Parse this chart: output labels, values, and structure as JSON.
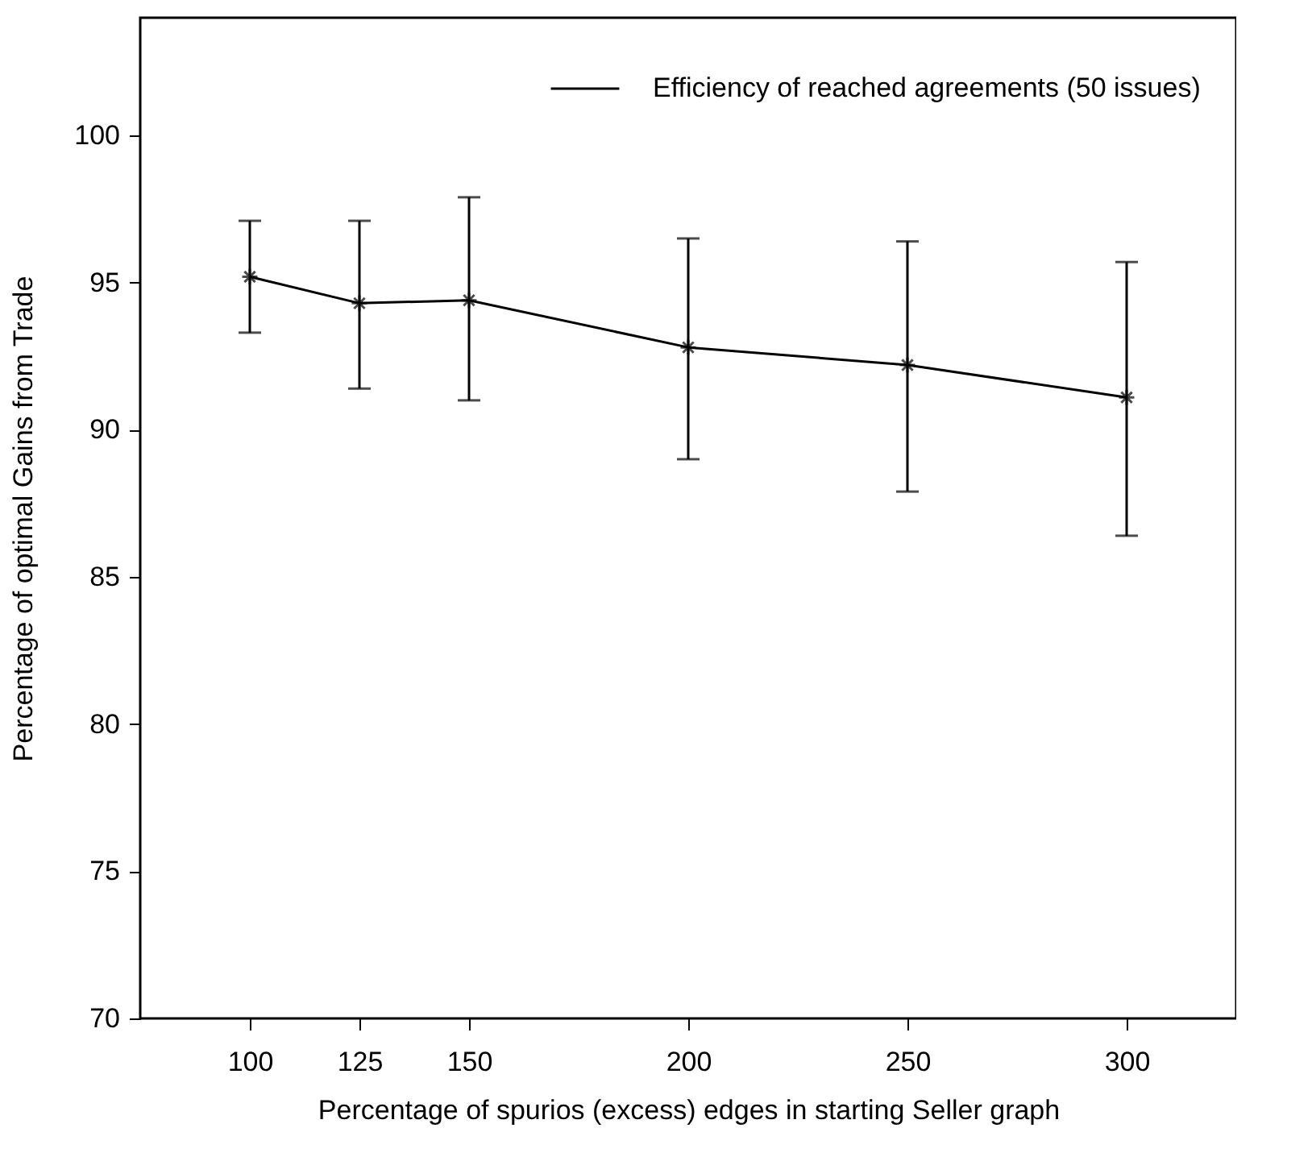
{
  "chart_data": {
    "type": "line",
    "xlabel": "Percentage of spurios (excess) edges in starting Seller graph",
    "ylabel": "Percentage of optimal Gains from Trade",
    "x": [
      100,
      125,
      150,
      200,
      250,
      300
    ],
    "series": [
      {
        "name": "Efficiency of reached agreements (50 issues)",
        "color": "#000000",
        "values": [
          95.2,
          94.3,
          94.4,
          92.8,
          92.2,
          91.1
        ],
        "errors": [
          [
            93.3,
            97.1
          ],
          [
            91.4,
            97.1
          ],
          [
            91.0,
            97.9
          ],
          [
            89.0,
            96.5
          ],
          [
            87.9,
            96.4
          ],
          [
            86.4,
            95.7
          ]
        ]
      }
    ],
    "xlim": [
      75,
      325
    ],
    "xticks": [
      100,
      125,
      150,
      200,
      250,
      300
    ],
    "ylim": [
      70,
      104
    ],
    "yticks": [
      70,
      75,
      80,
      85,
      90,
      95,
      100
    ],
    "grid": false,
    "legend": "top right",
    "marker": "cross",
    "line_style": "solid"
  }
}
